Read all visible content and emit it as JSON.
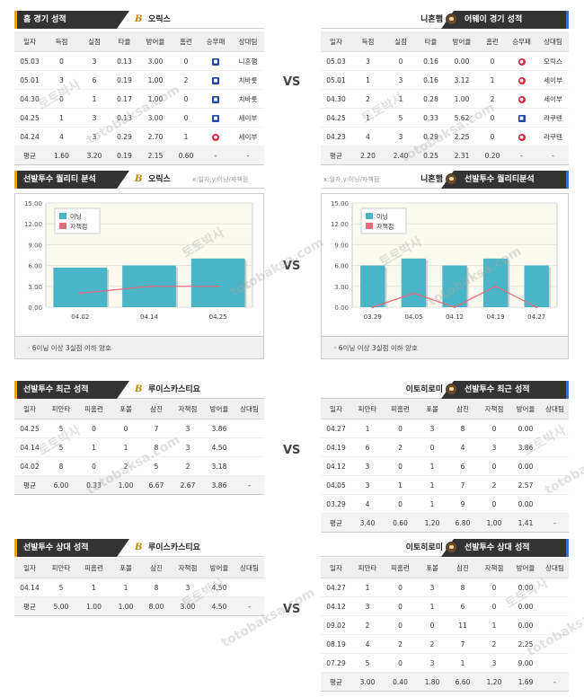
{
  "vs_label": "VS",
  "colors": {
    "header_bg": "#333333",
    "accent_home": "#f0a020",
    "accent_away": "#3070d0",
    "bar": "#4ab5c6",
    "line": "#e9687a",
    "win": "#2548a6",
    "loss": "#d9293b"
  },
  "icons": {
    "win": "W",
    "loss": "L"
  },
  "watermark": [
    "토토박사",
    "totobaksa.com"
  ],
  "team_game": {
    "left": {
      "title": "홈 경기 성적",
      "team": "오릭스",
      "logo": "B",
      "headers": [
        "일자",
        "득점",
        "실점",
        "타율",
        "방어율",
        "홈런",
        "승무패",
        "상대팀"
      ],
      "rows": [
        [
          "05.03",
          "0",
          "3",
          "0.13",
          "3.00",
          "0",
          "W",
          "니혼햄"
        ],
        [
          "05.01",
          "3",
          "6",
          "0.19",
          "1.00",
          "2",
          "W",
          "치바롯"
        ],
        [
          "04.30",
          "0",
          "1",
          "0.17",
          "1.00",
          "0",
          "W",
          "치바롯"
        ],
        [
          "04.25",
          "1",
          "3",
          "0.13",
          "3.00",
          "0",
          "W",
          "세이부"
        ],
        [
          "04.24",
          "4",
          "3",
          "0.29",
          "2.70",
          "1",
          "L",
          "세이부"
        ]
      ],
      "avg": [
        "평균",
        "1.60",
        "3.20",
        "0.19",
        "2.15",
        "0.60",
        "-",
        "-"
      ]
    },
    "right": {
      "title": "어웨이 경기 성적",
      "team": "니혼햄",
      "headers": [
        "일자",
        "득점",
        "실점",
        "타율",
        "방어율",
        "홈런",
        "승무패",
        "상대팀"
      ],
      "rows": [
        [
          "05.03",
          "3",
          "0",
          "0.16",
          "0.00",
          "0",
          "L",
          "오릭스"
        ],
        [
          "05.01",
          "1",
          "3",
          "0.16",
          "3.12",
          "1",
          "L",
          "세이부"
        ],
        [
          "04.30",
          "2",
          "1",
          "0.28",
          "1.00",
          "2",
          "L",
          "세이부"
        ],
        [
          "04.25",
          "1",
          "5",
          "0.33",
          "5.62",
          "0",
          "W",
          "라쿠텐"
        ],
        [
          "04.23",
          "4",
          "3",
          "0.29",
          "2.25",
          "0",
          "L",
          "라쿠텐"
        ]
      ],
      "avg": [
        "평균",
        "2.20",
        "2.40",
        "0.25",
        "2.31",
        "0.20",
        "-",
        "-"
      ]
    }
  },
  "quality": {
    "left": {
      "title": "선발투수 퀄리티 분석",
      "team": "오릭스",
      "sub": "x:일자,y:이닝/자책점",
      "note": "6이닝 이상 3실점 이하 양호"
    },
    "right": {
      "title": "선발투수 퀄리티분석",
      "team": "니혼햄",
      "sub": "x:일자,y:이닝/자책점",
      "note": "6이닝 이상 3실점 이하 양호"
    }
  },
  "chart_data": [
    {
      "type": "bar",
      "categories": [
        "04.02",
        "04.14",
        "04.25"
      ],
      "series": [
        {
          "name": "이닝",
          "values": [
            5.7,
            6.0,
            7.0
          ]
        },
        {
          "name": "자책점",
          "values": [
            2.0,
            3.0,
            3.0
          ]
        }
      ],
      "ylim": [
        0,
        15
      ],
      "yticks": [
        "0.00",
        "3.00",
        "6.00",
        "9.00",
        "12.00",
        "15.00"
      ],
      "legend": "top-left",
      "grid": true
    },
    {
      "type": "bar",
      "categories": [
        "03.29",
        "04.05",
        "04.12",
        "04.19",
        "04.27"
      ],
      "series": [
        {
          "name": "이닝",
          "values": [
            6.0,
            7.0,
            6.0,
            7.0,
            6.0
          ]
        },
        {
          "name": "자책점",
          "values": [
            0.0,
            2.0,
            0.0,
            3.0,
            0.0
          ]
        }
      ],
      "ylim": [
        0,
        15
      ],
      "yticks": [
        "0.00",
        "3.00",
        "6.00",
        "9.00",
        "12.00",
        "15.00"
      ],
      "legend": "top-left",
      "grid": true
    }
  ],
  "recent": {
    "left": {
      "title": "선발투수 최근 성적",
      "team": "루이스카스티요",
      "headers": [
        "일자",
        "피안타",
        "피홈런",
        "포볼",
        "삼진",
        "자책점",
        "방어율",
        "상대팀"
      ],
      "rows": [
        [
          "04.25",
          "5",
          "0",
          "0",
          "7",
          "3",
          "3.86",
          ""
        ],
        [
          "04.14",
          "5",
          "1",
          "1",
          "8",
          "3",
          "4.50",
          ""
        ],
        [
          "04.02",
          "8",
          "0",
          "2",
          "5",
          "2",
          "3.18",
          ""
        ]
      ],
      "avg": [
        "평균",
        "6.00",
        "0.33",
        "1.00",
        "6.67",
        "2.67",
        "3.86",
        "-"
      ]
    },
    "right": {
      "title": "선발투수 최근 성적",
      "team": "이토히로미",
      "headers": [
        "일자",
        "피안타",
        "피홈런",
        "포볼",
        "삼진",
        "자책점",
        "방어율",
        "상대팀"
      ],
      "rows": [
        [
          "04.27",
          "1",
          "0",
          "3",
          "8",
          "0",
          "0.00",
          ""
        ],
        [
          "04.19",
          "6",
          "2",
          "0",
          "4",
          "3",
          "3.86",
          ""
        ],
        [
          "04.12",
          "3",
          "0",
          "1",
          "6",
          "0",
          "0.00",
          ""
        ],
        [
          "04.05",
          "3",
          "1",
          "1",
          "7",
          "2",
          "2.57",
          ""
        ],
        [
          "03.29",
          "4",
          "0",
          "1",
          "9",
          "0",
          "0.00",
          ""
        ]
      ],
      "avg": [
        "평균",
        "3.40",
        "0.60",
        "1.20",
        "6.80",
        "1.00",
        "1.41",
        "-"
      ]
    }
  },
  "relative": {
    "left": {
      "title": "선발투수 상대 성적",
      "team": "루이스카스티요",
      "headers": [
        "일자",
        "피안타",
        "피홈런",
        "포볼",
        "삼진",
        "자책점",
        "방어율",
        "상대팀"
      ],
      "rows": [
        [
          "04.14",
          "5",
          "1",
          "1",
          "8",
          "3",
          "4.50",
          ""
        ]
      ],
      "avg": [
        "평균",
        "5.00",
        "1.00",
        "1.00",
        "8.00",
        "3.00",
        "4.50",
        "-"
      ]
    },
    "right": {
      "title": "선발투수 상대 성적",
      "team": "이토히로미",
      "headers": [
        "일자",
        "피안타",
        "피홈런",
        "포볼",
        "삼진",
        "자책점",
        "방어율",
        "상대팀"
      ],
      "rows": [
        [
          "04.27",
          "1",
          "0",
          "3",
          "8",
          "0",
          "0.00",
          ""
        ],
        [
          "04.12",
          "3",
          "0",
          "1",
          "6",
          "0",
          "0.00",
          ""
        ],
        [
          "09.02",
          "2",
          "0",
          "0",
          "11",
          "1",
          "0.00",
          ""
        ],
        [
          "08.19",
          "4",
          "2",
          "2",
          "7",
          "2",
          "2.25",
          ""
        ],
        [
          "07.29",
          "5",
          "0",
          "3",
          "1",
          "3",
          "9.00",
          ""
        ]
      ],
      "avg": [
        "평균",
        "3.00",
        "0.40",
        "1.80",
        "6.60",
        "1.20",
        "1.69",
        "-"
      ]
    }
  }
}
